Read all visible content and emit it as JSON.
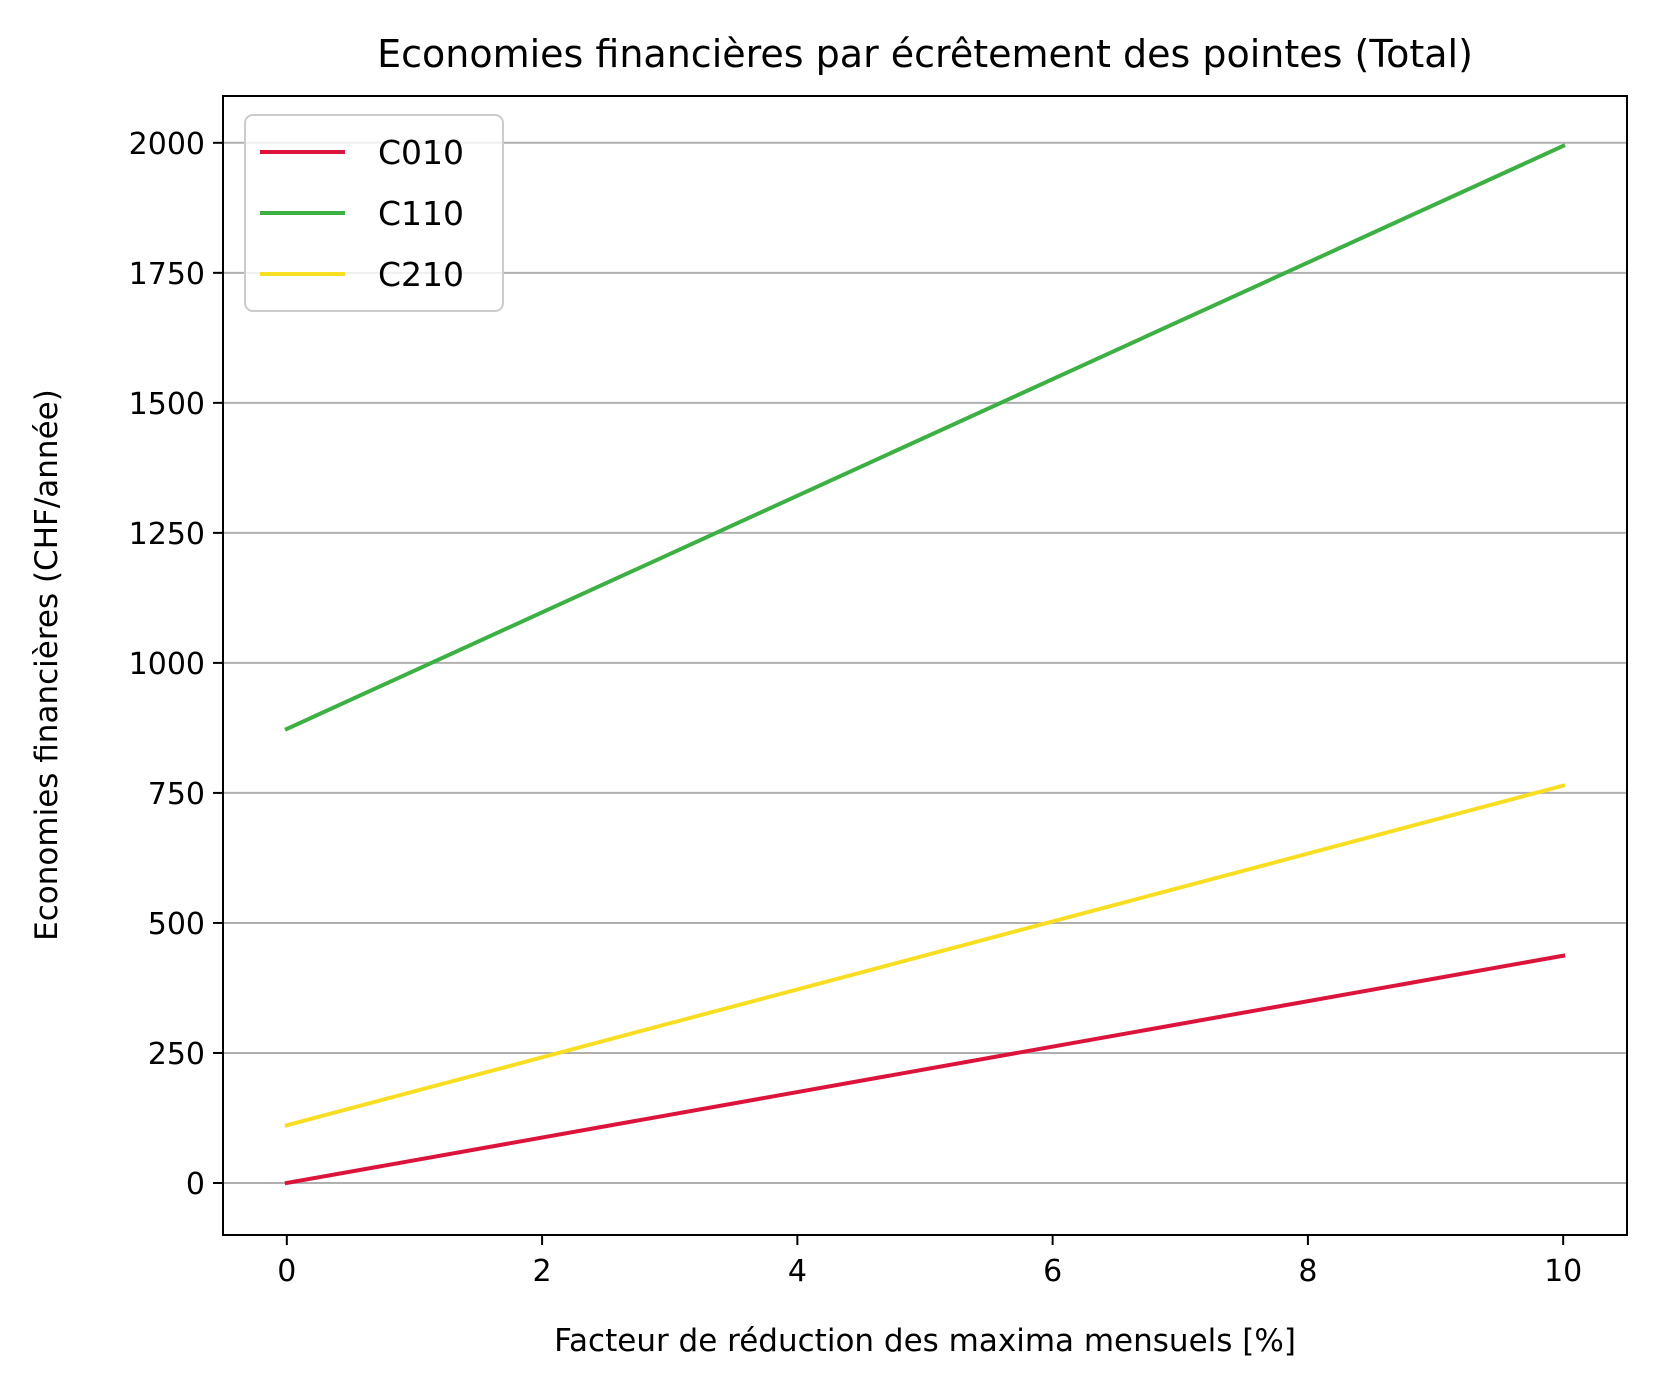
{
  "chart_data": {
    "type": "line",
    "title": "Economies financières par écrêtement des pointes (Total)",
    "xlabel": "Facteur de réduction des maxima mensuels [%]",
    "ylabel": "Economies financières (CHF/année)",
    "xlim": [
      -0.5,
      10.5
    ],
    "ylim": [
      -100,
      2090
    ],
    "x_ticks": [
      0,
      2,
      4,
      6,
      8,
      10
    ],
    "y_ticks": [
      0,
      250,
      500,
      750,
      1000,
      1250,
      1500,
      1750,
      2000
    ],
    "x_tick_labels": [
      "0",
      "2",
      "4",
      "6",
      "8",
      "10"
    ],
    "y_tick_labels": [
      "0",
      "250",
      "500",
      "750",
      "1000",
      "1250",
      "1500",
      "1750",
      "2000"
    ],
    "grid": "horizontal",
    "legend_position": "upper-left",
    "x": [
      0,
      10
    ],
    "series": [
      {
        "name": "C010",
        "color": "#dc143c",
        "values": [
          0,
          437
        ]
      },
      {
        "name": "C110",
        "color": "#3cb043",
        "values": [
          873,
          1994
        ]
      },
      {
        "name": "C210",
        "color": "#f8de22",
        "values": [
          111,
          764
        ]
      }
    ]
  }
}
